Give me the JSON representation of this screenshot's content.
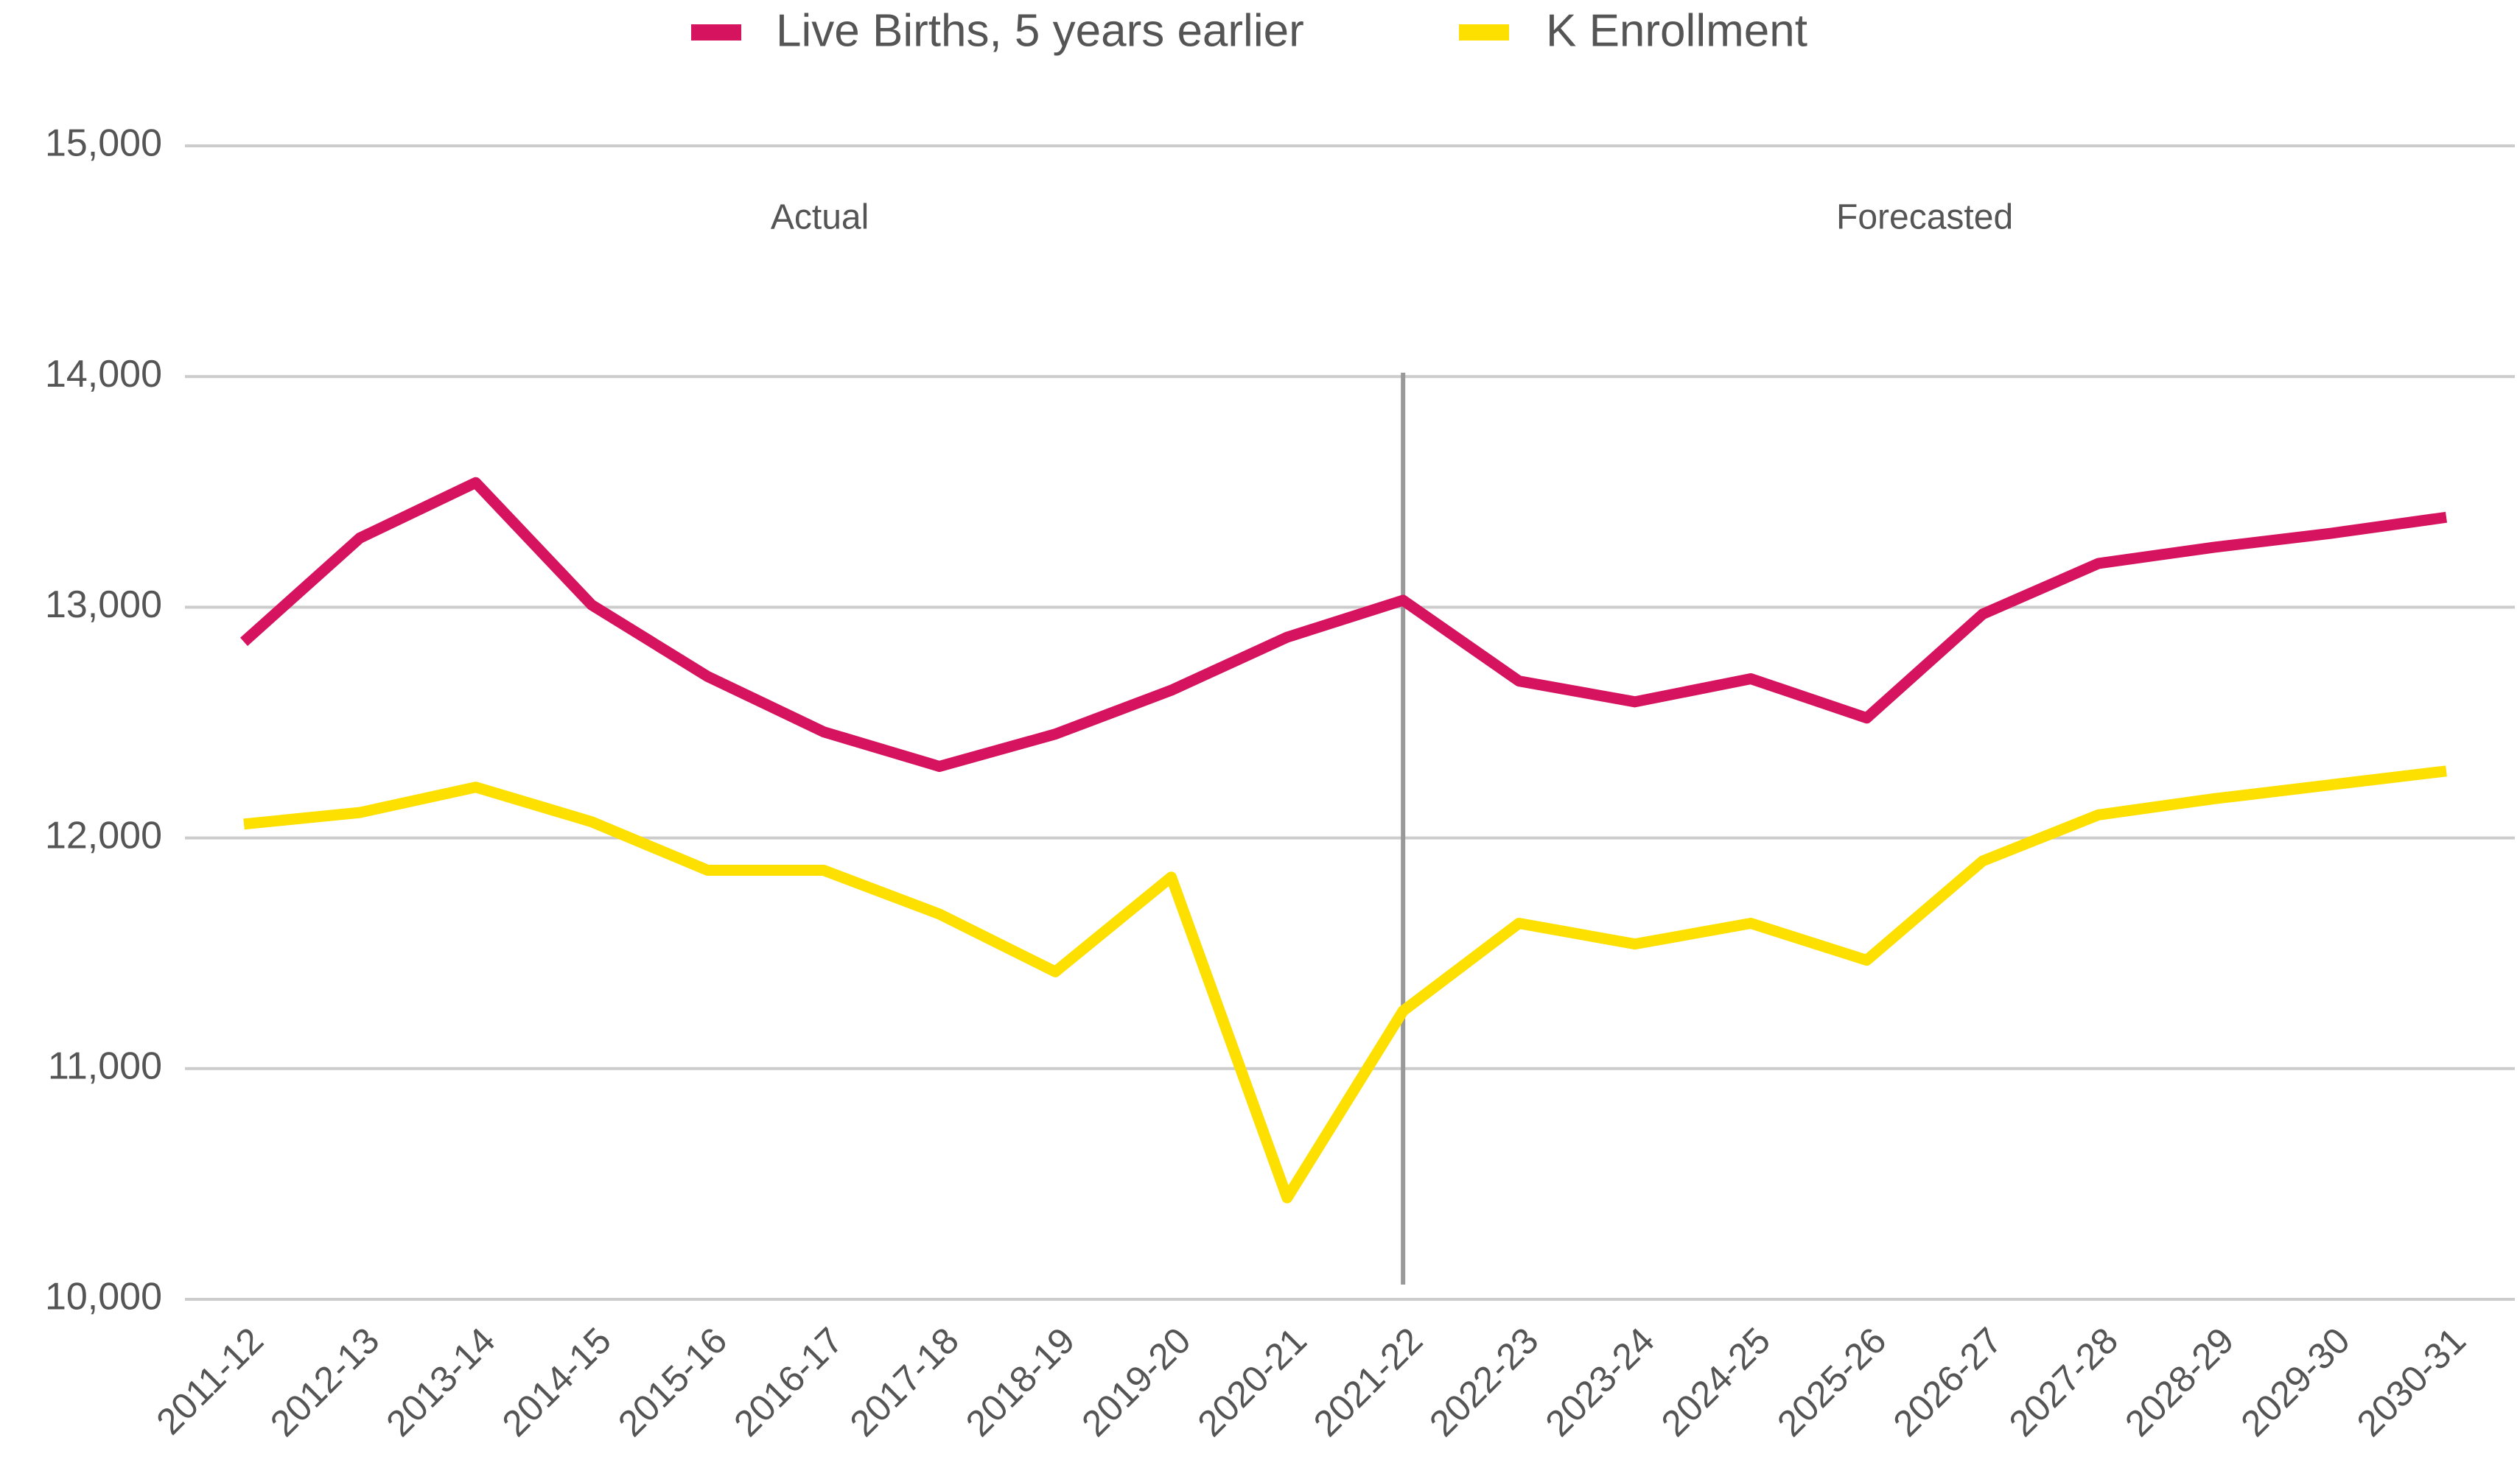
{
  "chart_data": {
    "type": "line",
    "categories": [
      "2011-12",
      "2012-13",
      "2013-14",
      "2014-15",
      "2015-16",
      "2016-17",
      "2017-18",
      "2018-19",
      "2019-20",
      "2020-21",
      "2021-22",
      "2022-23",
      "2023-24",
      "2024-25",
      "2025-26",
      "2026-27",
      "2027-28",
      "2028-29",
      "2029-30",
      "2030-31"
    ],
    "series": [
      {
        "name": "Live Births, 5 years earlier",
        "color": "#d6135f",
        "values": [
          12850,
          13300,
          13540,
          13010,
          12700,
          12460,
          12310,
          12450,
          12640,
          12870,
          13030,
          12680,
          12590,
          12690,
          12520,
          12970,
          13190,
          13260,
          13320,
          13390
        ]
      },
      {
        "name": "K Enrollment",
        "color": "#fde000",
        "values": [
          12060,
          12110,
          12220,
          12070,
          11860,
          11860,
          11670,
          11420,
          11830,
          10440,
          11250,
          11630,
          11540,
          11630,
          11470,
          11900,
          12100,
          12170,
          12230,
          12290
        ]
      }
    ],
    "annotations": [
      "Actual",
      "Forecasted"
    ],
    "ylim": [
      10000,
      15000
    ],
    "yticks": [
      {
        "value": 10000,
        "label": "10,000"
      },
      {
        "value": 11000,
        "label": "11,000"
      },
      {
        "value": 12000,
        "label": "12,000"
      },
      {
        "value": 13000,
        "label": "13,000"
      },
      {
        "value": 14000,
        "label": "14,000"
      },
      {
        "value": 15000,
        "label": "15,000"
      }
    ],
    "grid": true,
    "legend": "top"
  }
}
